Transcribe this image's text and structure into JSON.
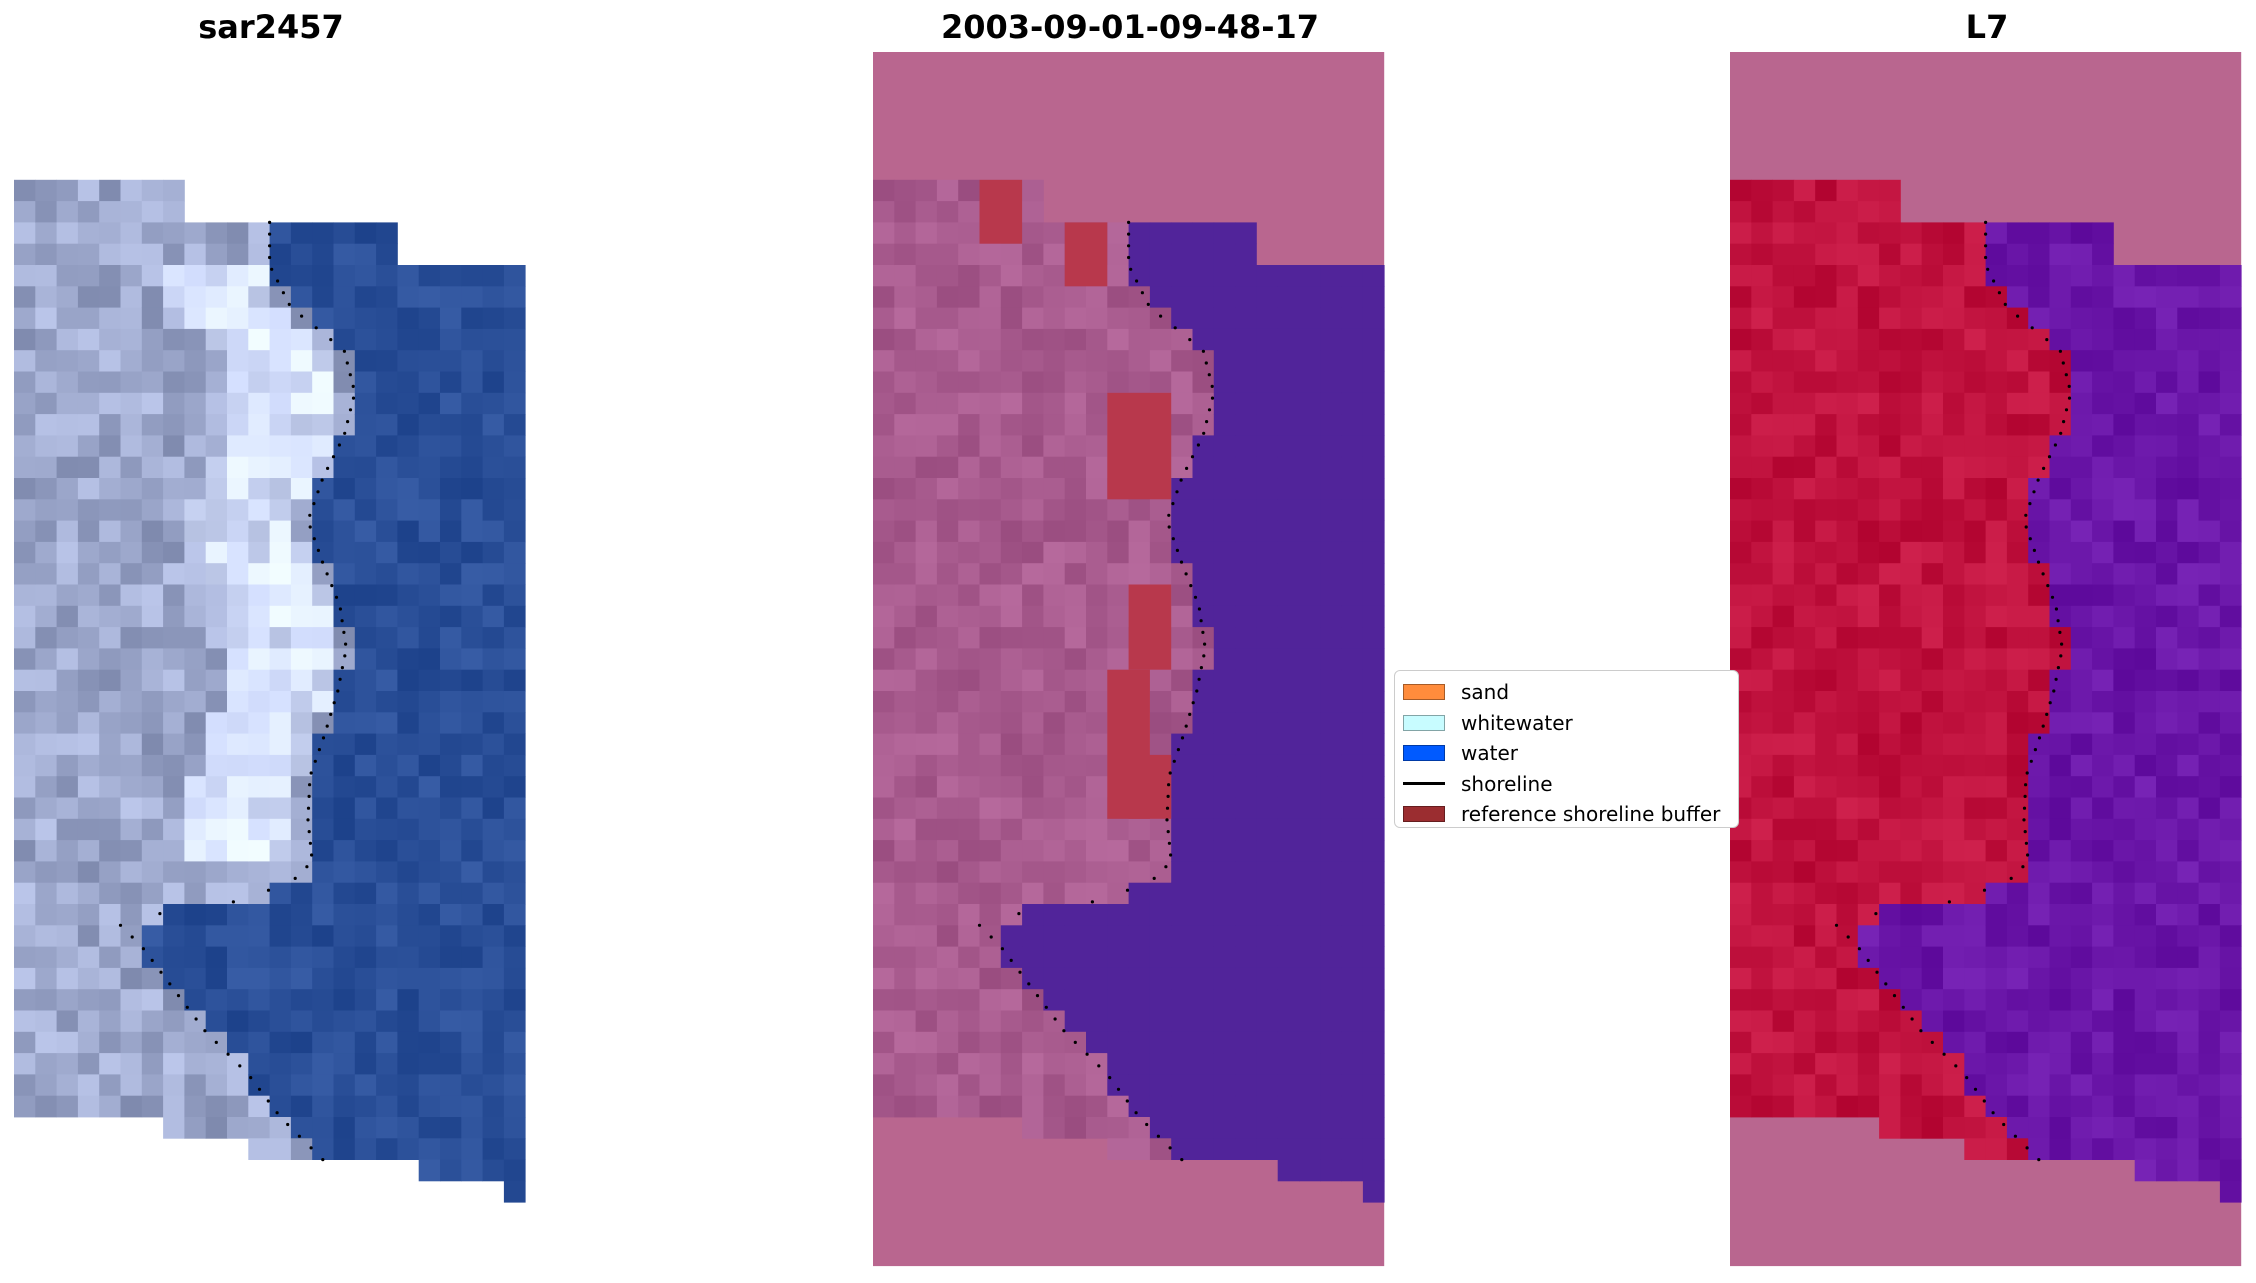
{
  "panels": [
    {
      "title": "sar2457",
      "kind": "rgb-satellite"
    },
    {
      "title": "2003-09-01-09-48-17",
      "kind": "classification-overlay"
    },
    {
      "title": "L7",
      "kind": "mndwi-overlay"
    }
  ],
  "legend": {
    "items": [
      {
        "label": "sand",
        "color": "#ff8c3c",
        "kind": "patch"
      },
      {
        "label": "whitewater",
        "color": "#c8fcff",
        "kind": "patch"
      },
      {
        "label": "water",
        "color": "#005aff",
        "kind": "patch"
      },
      {
        "label": "shoreline",
        "color": "#000000",
        "kind": "line"
      },
      {
        "label": "reference shoreline buffer",
        "color": "#9b2d30",
        "kind": "patch"
      }
    ]
  },
  "colors": {
    "nodata": "#b9668f",
    "water_rgb": "#2a4f98",
    "land_rgb": "#9da8cc",
    "class_water": "#51249a",
    "class_land": "#a85b8e",
    "class_buffer": "#b8384c",
    "mndwi_land": "#c0123e",
    "mndwi_water": "#6a16a8"
  }
}
